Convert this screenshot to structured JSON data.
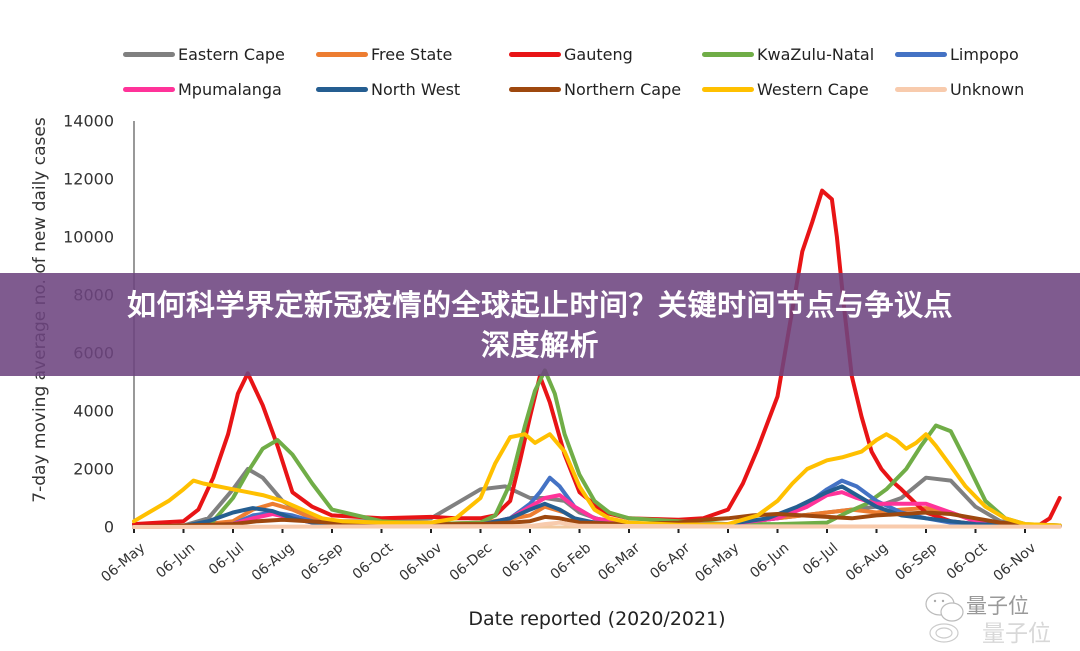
{
  "banner": {
    "line1": "如何科学界定新冠疫情的全球起止时间？关键时间节点与争议点",
    "line2": "深度解析"
  },
  "watermark": {
    "text": "量子位",
    "icon": "wechat-icon"
  },
  "chart_data": {
    "type": "line",
    "title": "",
    "xlabel": "Date reported (2020/2021)",
    "ylabel": "7-day moving average no. of new daily cases",
    "ylim": [
      0,
      14000
    ],
    "yticks": [
      0,
      2000,
      4000,
      6000,
      8000,
      10000,
      12000,
      14000
    ],
    "xticks": [
      "06-May",
      "06-Jun",
      "06-Jul",
      "06-Aug",
      "06-Sep",
      "06-Oct",
      "06-Nov",
      "06-Dec",
      "06-Jan",
      "06-Feb",
      "06-Mar",
      "06-Apr",
      "06-May",
      "06-Jun",
      "06-Jul",
      "06-Aug",
      "06-Sep",
      "06-Oct",
      "06-Nov"
    ],
    "x_unit": "months since 06-May-2020",
    "grid": false,
    "legend_position": "top",
    "series": [
      {
        "name": "Eastern Cape",
        "color": "#808080",
        "x": [
          0,
          1,
          1.5,
          2,
          2.3,
          2.6,
          3,
          3.5,
          4,
          5,
          6,
          6.5,
          7,
          7.5,
          8,
          8.3,
          8.7,
          9,
          9.5,
          10,
          11,
          12,
          13,
          14,
          15,
          15.5,
          16,
          16.5,
          17,
          17.5,
          18,
          18.7
        ],
        "y": [
          0,
          50,
          300,
          1300,
          2000,
          1700,
          900,
          400,
          200,
          200,
          300,
          800,
          1300,
          1400,
          1000,
          1000,
          900,
          500,
          200,
          100,
          80,
          100,
          300,
          500,
          700,
          1000,
          1700,
          1600,
          700,
          200,
          80,
          50
        ]
      },
      {
        "name": "Free State",
        "color": "#ED7D31",
        "x": [
          0,
          1,
          2,
          2.4,
          2.8,
          3.2,
          3.6,
          4,
          5,
          6,
          7,
          7.5,
          8,
          8.3,
          8.7,
          9,
          10,
          11,
          12,
          13,
          14,
          14.5,
          15,
          15.5,
          16,
          16.5,
          17,
          17.5,
          18,
          18.7
        ],
        "y": [
          0,
          20,
          200,
          600,
          800,
          600,
          300,
          150,
          100,
          100,
          150,
          250,
          400,
          700,
          500,
          200,
          80,
          60,
          100,
          300,
          500,
          600,
          500,
          600,
          650,
          500,
          200,
          80,
          50,
          40
        ]
      },
      {
        "name": "Gauteng",
        "color": "#E81416",
        "x": [
          0,
          0.5,
          1,
          1.3,
          1.6,
          1.9,
          2.1,
          2.3,
          2.6,
          2.9,
          3.2,
          3.6,
          4,
          5,
          6,
          6.5,
          7,
          7.3,
          7.6,
          7.8,
          8,
          8.2,
          8.4,
          8.7,
          9,
          9.5,
          10,
          11,
          11.5,
          12,
          12.3,
          12.6,
          13,
          13.3,
          13.5,
          13.7,
          13.9,
          14.1,
          14.2,
          14.35,
          14.5,
          14.7,
          14.9,
          15.1,
          15.3,
          15.5,
          15.8,
          16,
          16.5,
          17,
          17.5,
          18,
          18.3,
          18.5,
          18.7
        ],
        "y": [
          100,
          150,
          200,
          600,
          1700,
          3200,
          4600,
          5300,
          4200,
          2800,
          1200,
          700,
          400,
          300,
          350,
          300,
          300,
          400,
          900,
          2300,
          3800,
          5200,
          4300,
          2500,
          1200,
          500,
          300,
          250,
          300,
          600,
          1500,
          2700,
          4500,
          7500,
          9500,
          10500,
          11600,
          11300,
          10000,
          7500,
          5200,
          3800,
          2600,
          2000,
          1600,
          1300,
          800,
          500,
          200,
          100,
          50,
          50,
          80,
          300,
          1000
        ]
      },
      {
        "name": "KwaZulu-Natal",
        "color": "#70AD47",
        "x": [
          0,
          1,
          1.6,
          2,
          2.3,
          2.6,
          2.9,
          3.2,
          3.6,
          4,
          5,
          6,
          7,
          7.3,
          7.6,
          7.9,
          8.1,
          8.3,
          8.5,
          8.7,
          9,
          9.3,
          9.6,
          10,
          11,
          12,
          13,
          14,
          14.4,
          14.8,
          15.2,
          15.6,
          15.9,
          16.2,
          16.5,
          16.8,
          17.2,
          17.6,
          18,
          18.7
        ],
        "y": [
          0,
          30,
          200,
          1000,
          1900,
          2700,
          3000,
          2500,
          1500,
          600,
          200,
          100,
          150,
          400,
          1500,
          3500,
          4700,
          5400,
          4600,
          3200,
          1800,
          900,
          500,
          300,
          200,
          100,
          100,
          150,
          500,
          800,
          1300,
          2000,
          2800,
          3500,
          3300,
          2300,
          900,
          300,
          100,
          50
        ]
      },
      {
        "name": "Limpopo",
        "color": "#4472C4",
        "x": [
          0,
          1,
          2,
          2.4,
          2.8,
          3.2,
          3.6,
          4,
          6,
          7,
          7.6,
          8,
          8.2,
          8.4,
          8.6,
          8.9,
          9.3,
          10,
          12,
          13,
          13.6,
          14,
          14.3,
          14.6,
          15,
          15.5,
          16,
          16.5,
          17,
          18,
          18.7
        ],
        "y": [
          0,
          20,
          100,
          400,
          500,
          400,
          200,
          80,
          60,
          80,
          300,
          800,
          1200,
          1700,
          1400,
          700,
          300,
          100,
          100,
          300,
          800,
          1300,
          1600,
          1400,
          900,
          500,
          300,
          150,
          60,
          30,
          20
        ]
      },
      {
        "name": "Mpumalanga",
        "color": "#FF3399",
        "x": [
          0,
          1,
          2,
          2.4,
          2.8,
          3.2,
          3.6,
          4,
          6,
          7,
          7.6,
          8,
          8.3,
          8.6,
          8.9,
          9.3,
          10,
          12,
          13,
          13.6,
          14,
          14.3,
          14.6,
          15,
          15.5,
          16,
          16.5,
          17,
          18,
          18.7
        ],
        "y": [
          0,
          20,
          100,
          300,
          450,
          300,
          150,
          60,
          50,
          70,
          300,
          700,
          1000,
          1100,
          700,
          300,
          100,
          100,
          300,
          700,
          1100,
          1200,
          1000,
          800,
          800,
          800,
          500,
          200,
          50,
          20
        ]
      },
      {
        "name": "North West",
        "color": "#255E91",
        "x": [
          0,
          1,
          1.5,
          2,
          2.4,
          2.8,
          3.2,
          3.6,
          4,
          6,
          7,
          7.6,
          8,
          8.3,
          8.6,
          8.9,
          9.3,
          10,
          12,
          12.8,
          13.4,
          14,
          14.3,
          14.6,
          15,
          15.5,
          16,
          16.5,
          17,
          18,
          18.7
        ],
        "y": [
          0,
          30,
          200,
          500,
          650,
          550,
          300,
          150,
          60,
          50,
          80,
          300,
          600,
          800,
          600,
          300,
          150,
          80,
          100,
          300,
          700,
          1200,
          1400,
          1100,
          700,
          400,
          300,
          200,
          100,
          40,
          20
        ]
      },
      {
        "name": "Northern Cape",
        "color": "#9E480E",
        "x": [
          0,
          1,
          2,
          2.5,
          3,
          4,
          5,
          6,
          7,
          7.6,
          8,
          8.3,
          8.6,
          9,
          10,
          11,
          11.5,
          12,
          12.5,
          13,
          13.5,
          14,
          14.5,
          15,
          15.5,
          16,
          16.5,
          17,
          17.5,
          18,
          18.7
        ],
        "y": [
          0,
          50,
          100,
          200,
          250,
          150,
          100,
          100,
          100,
          150,
          200,
          350,
          300,
          150,
          100,
          150,
          250,
          300,
          400,
          450,
          400,
          350,
          300,
          400,
          450,
          500,
          450,
          300,
          150,
          80,
          50
        ]
      },
      {
        "name": "Western Cape",
        "color": "#FFC000",
        "x": [
          0,
          0.3,
          0.7,
          1,
          1.2,
          1.4,
          1.7,
          2,
          2.3,
          2.6,
          3,
          3.4,
          3.8,
          4.2,
          5,
          6,
          6.5,
          7,
          7.3,
          7.6,
          7.9,
          8.1,
          8.4,
          8.7,
          9,
          9.3,
          9.6,
          10,
          11,
          12,
          12.6,
          13,
          13.3,
          13.6,
          14,
          14.3,
          14.7,
          15,
          15.2,
          15.4,
          15.6,
          15.8,
          16,
          16.2,
          16.5,
          16.8,
          17.2,
          17.6,
          18,
          18.7
        ],
        "y": [
          200,
          500,
          900,
          1300,
          1600,
          1500,
          1400,
          1300,
          1200,
          1100,
          900,
          600,
          300,
          200,
          150,
          150,
          300,
          1000,
          2200,
          3100,
          3200,
          2900,
          3200,
          2600,
          1400,
          600,
          300,
          150,
          80,
          100,
          400,
          900,
          1500,
          2000,
          2300,
          2400,
          2600,
          3000,
          3200,
          3000,
          2700,
          2900,
          3200,
          2800,
          2100,
          1400,
          700,
          300,
          100,
          50
        ]
      },
      {
        "name": "Unknown",
        "color": "#F8CBAD",
        "x": [
          0,
          5,
          8,
          8.3,
          8.6,
          9,
          12,
          18.7
        ],
        "y": [
          0,
          20,
          30,
          100,
          150,
          40,
          20,
          10
        ]
      }
    ]
  }
}
